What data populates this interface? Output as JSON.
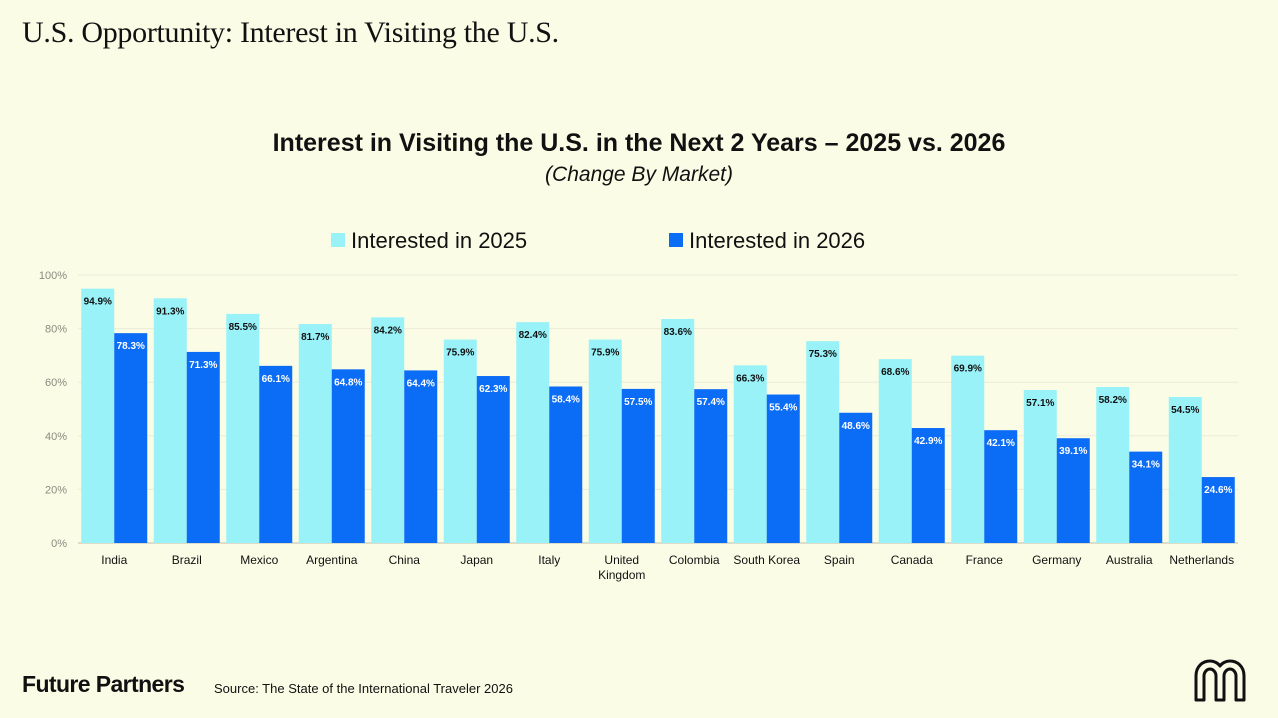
{
  "header": {
    "title": "U.S. Opportunity: Interest in Visiting the U.S."
  },
  "colors": {
    "series_2025": "#98f2f8",
    "series_2026": "#0b6cf5",
    "background": "#fbfce6",
    "label_dark": "#111111",
    "label_light": "#ffffff"
  },
  "chart_data": {
    "type": "bar",
    "title": "Interest in Visiting the U.S. in the Next 2 Years – 2025 vs. 2026",
    "subtitle": "(Change By Market)",
    "xlabel": "",
    "ylabel": "",
    "ylim": [
      0,
      100
    ],
    "yticks": [
      0,
      20,
      40,
      60,
      80,
      100
    ],
    "ytick_labels": [
      "0%",
      "20%",
      "40%",
      "60%",
      "80%",
      "100%"
    ],
    "grid": true,
    "legend": "top-center",
    "categories": [
      "India",
      "Brazil",
      "Mexico",
      "Argentina",
      "China",
      "Japan",
      "Italy",
      "United Kingdom",
      "Colombia",
      "South Korea",
      "Spain",
      "Canada",
      "France",
      "Germany",
      "Australia",
      "Netherlands"
    ],
    "category_lines": [
      [
        "India"
      ],
      [
        "Brazil"
      ],
      [
        "Mexico"
      ],
      [
        "Argentina"
      ],
      [
        "China"
      ],
      [
        "Japan"
      ],
      [
        "Italy"
      ],
      [
        "United",
        "Kingdom"
      ],
      [
        "Colombia"
      ],
      [
        "South Korea"
      ],
      [
        "Spain"
      ],
      [
        "Canada"
      ],
      [
        "France"
      ],
      [
        "Germany"
      ],
      [
        "Australia"
      ],
      [
        "Netherlands"
      ]
    ],
    "series": [
      {
        "name": "Interested in 2025",
        "values": [
          94.9,
          91.3,
          85.5,
          81.7,
          84.2,
          75.9,
          82.4,
          75.9,
          83.6,
          66.3,
          75.3,
          68.6,
          69.9,
          57.1,
          58.2,
          54.5
        ],
        "labels": [
          "94.9%",
          "91.3%",
          "85.5%",
          "81.7%",
          "84.2%",
          "75.9%",
          "82.4%",
          "75.9%",
          "83.6%",
          "66.3%",
          "75.3%",
          "68.6%",
          "69.9%",
          "57.1%",
          "58.2%",
          "54.5%"
        ]
      },
      {
        "name": "Interested in 2026",
        "values": [
          78.3,
          71.3,
          66.1,
          64.8,
          64.4,
          62.3,
          58.4,
          57.5,
          57.4,
          55.4,
          48.6,
          42.9,
          42.1,
          39.1,
          34.1,
          24.6
        ],
        "labels": [
          "78.3%",
          "71.3%",
          "66.1%",
          "64.8%",
          "64.4%",
          "62.3%",
          "58.4%",
          "57.5%",
          "57.4%",
          "55.4%",
          "48.6%",
          "42.9%",
          "42.1%",
          "39.1%",
          "34.1%",
          "24.6%"
        ]
      }
    ]
  },
  "footer": {
    "brand": "Future Partners",
    "source": "Source: The State of the International Traveler 2026",
    "logo_icon": "future-partners-logo-icon"
  }
}
